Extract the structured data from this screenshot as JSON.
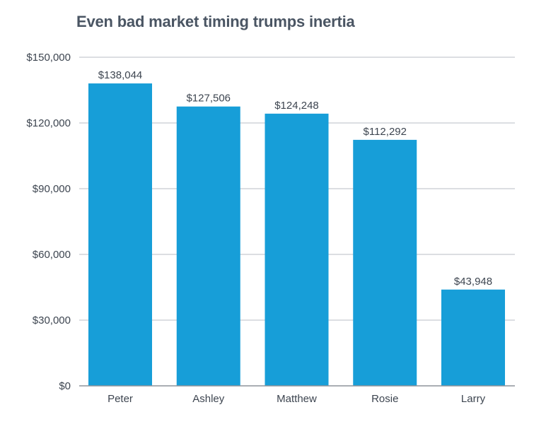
{
  "chart_data": {
    "type": "bar",
    "title": "Even bad market timing trumps inertia",
    "categories": [
      "Peter",
      "Ashley",
      "Matthew",
      "Rosie",
      "Larry"
    ],
    "values": [
      138044,
      127506,
      124248,
      112292,
      43948
    ],
    "value_labels": [
      "$138,044",
      "$127,506",
      "$124,248",
      "$112,292",
      "$43,948"
    ],
    "yticks": [
      0,
      30000,
      60000,
      90000,
      120000,
      150000
    ],
    "ytick_labels": [
      "$0",
      "$30,000",
      "$60,000",
      "$90,000",
      "$120,000",
      "$150,000"
    ],
    "ylim": [
      0,
      150000
    ],
    "xlabel": "",
    "ylabel": "",
    "grid": true,
    "bar_color": "#179ed8",
    "grid_color": "#b9bec4",
    "axis_color": "#8d949b"
  }
}
